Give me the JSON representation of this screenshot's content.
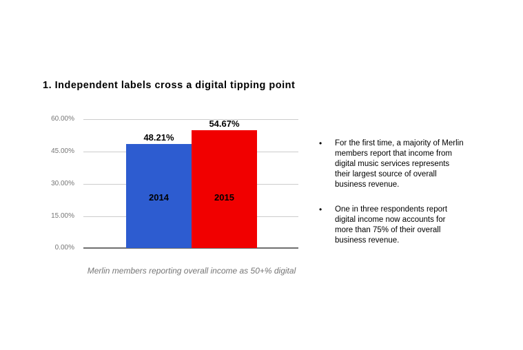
{
  "title": {
    "text": "1. Independent labels cross a digital tipping point"
  },
  "chart_data": {
    "type": "bar",
    "title": "",
    "categories": [
      "2014",
      "2015"
    ],
    "values": [
      48.21,
      54.67
    ],
    "value_labels": [
      "48.21%",
      "54.67%"
    ],
    "bar_colors": [
      "#2d5cd0",
      "#f10000"
    ],
    "xlabel": "",
    "ylabel": "",
    "ylim": [
      0,
      60
    ],
    "ytick_values": [
      60,
      45,
      30,
      15,
      0
    ],
    "ytick_labels": [
      "60.00%",
      "45.00%",
      "30.00%",
      "15.00%",
      "0.00%"
    ],
    "grid": true,
    "legend_position": "none",
    "caption": "Merlin members reporting overall income as 50+% digital"
  },
  "bullets": {
    "marker": "•",
    "items": [
      "For the first time, a majority of Merlin members report that income from digital music services represents their largest source of overall business revenue.",
      "One in three respondents report digital income now accounts for more than 75% of their overall business revenue."
    ]
  }
}
